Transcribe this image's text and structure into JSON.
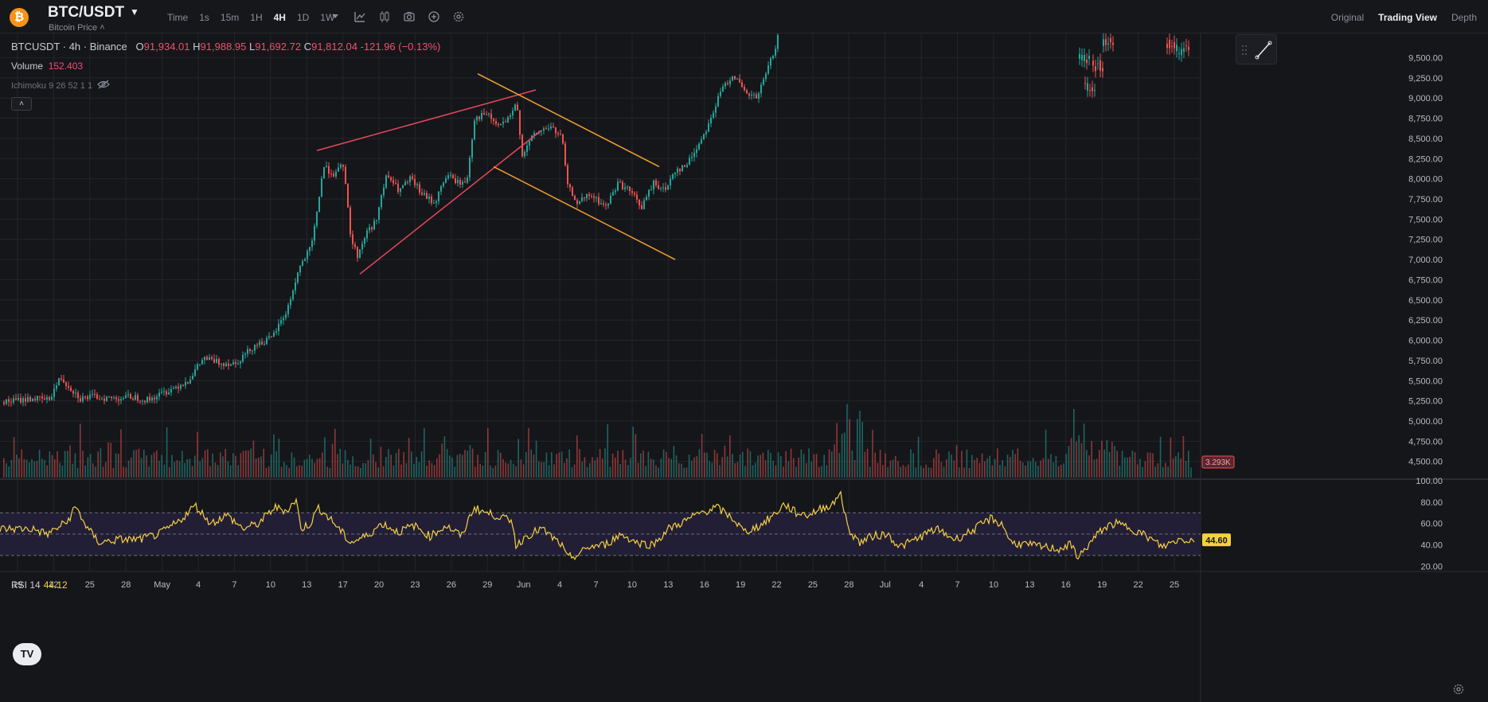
{
  "header": {
    "coin_icon": "bitcoin-icon",
    "pair": "BTC/USDT",
    "subtitle": "Bitcoin Price",
    "timeframe_label": "Time",
    "timeframes": [
      "1s",
      "15m",
      "1H",
      "4H",
      "1D",
      "1W"
    ],
    "active_timeframe": "4H",
    "tools": [
      "chevron-down-icon",
      "indicator-icon",
      "candles-icon",
      "camera-icon",
      "plus-circle-icon",
      "settings-icon"
    ],
    "views": [
      "Original",
      "Trading View",
      "Depth"
    ],
    "active_view": "Trading View"
  },
  "legend": {
    "symbol": "BTCUSDT · 4h · Binance",
    "open_label": "O",
    "open": "91,934.01",
    "high_label": "H",
    "high": "91,988.95",
    "low_label": "L",
    "low": "91,692.72",
    "close_label": "C",
    "close": "91,812.04",
    "change": "-121.96 (−0.13%)",
    "volume_label": "Volume",
    "volume_value": "152.403",
    "ichimoku_label": "Ichimoku 9 26 52 1 1",
    "rsi_label": "RSI 14",
    "rsi_value": "44.12"
  },
  "colors": {
    "background": "#15161a",
    "grid": "#23252b",
    "up": "#26a69a",
    "down": "#ef5350",
    "rsi": "#f5d142",
    "trend_red": "#e8485c",
    "trend_orange": "#f0a030"
  },
  "chart_data": [
    {
      "type": "candlestick",
      "price_ticks": [
        "9,500.00",
        "9,250.00",
        "9,000.00",
        "8,750.00",
        "8,500.00",
        "8,250.00",
        "8,000.00",
        "7,750.00",
        "7,500.00",
        "7,250.00",
        "7,000.00",
        "6,750.00",
        "6,500.00",
        "6,250.00",
        "6,000.00",
        "5,750.00",
        "5,500.00",
        "5,250.00",
        "5,000.00",
        "4,750.00",
        "4,500.00"
      ],
      "x_ticks": [
        "19",
        "22",
        "25",
        "28",
        "May",
        "4",
        "7",
        "10",
        "13",
        "17",
        "20",
        "23",
        "26",
        "29",
        "Jun",
        "4",
        "7",
        "10",
        "13",
        "16",
        "19",
        "22",
        "25",
        "28",
        "Jul",
        "4",
        "7",
        "10",
        "13",
        "16",
        "19",
        "22",
        "25"
      ],
      "ylim": [
        4300,
        9800
      ],
      "volume_badge": "3.293K",
      "path_keypoints": [
        [
          0,
          5230
        ],
        [
          40,
          5280
        ],
        [
          60,
          5260
        ],
        [
          75,
          5540
        ],
        [
          100,
          5280
        ],
        [
          115,
          5300
        ],
        [
          140,
          5280
        ],
        [
          165,
          5300
        ],
        [
          185,
          5260
        ],
        [
          215,
          5400
        ],
        [
          235,
          5500
        ],
        [
          255,
          5780
        ],
        [
          275,
          5720
        ],
        [
          295,
          5720
        ],
        [
          320,
          5950
        ],
        [
          340,
          6020
        ],
        [
          360,
          6380
        ],
        [
          375,
          6900
        ],
        [
          390,
          7150
        ],
        [
          395,
          7450
        ],
        [
          405,
          8150
        ],
        [
          420,
          8050
        ],
        [
          430,
          8180
        ],
        [
          440,
          7250
        ],
        [
          448,
          7050
        ],
        [
          460,
          7350
        ],
        [
          470,
          7450
        ],
        [
          485,
          8050
        ],
        [
          500,
          7850
        ],
        [
          515,
          8000
        ],
        [
          530,
          7800
        ],
        [
          545,
          7700
        ],
        [
          560,
          8050
        ],
        [
          575,
          7950
        ],
        [
          585,
          7950
        ],
        [
          595,
          8750
        ],
        [
          610,
          8800
        ],
        [
          625,
          8650
        ],
        [
          640,
          8750
        ],
        [
          648,
          8950
        ],
        [
          655,
          8300
        ],
        [
          670,
          8550
        ],
        [
          690,
          8650
        ],
        [
          705,
          8500
        ],
        [
          712,
          7900
        ],
        [
          725,
          7700
        ],
        [
          740,
          7800
        ],
        [
          760,
          7650
        ],
        [
          775,
          7950
        ],
        [
          790,
          7850
        ],
        [
          805,
          7650
        ],
        [
          820,
          7950
        ],
        [
          835,
          7850
        ],
        [
          845,
          8100
        ],
        [
          860,
          8150
        ],
        [
          875,
          8400
        ],
        [
          890,
          8700
        ],
        [
          905,
          9100
        ],
        [
          920,
          9300
        ],
        [
          935,
          9050
        ],
        [
          950,
          9000
        ],
        [
          965,
          9400
        ],
        [
          978,
          9800
        ]
      ],
      "partial_tail": [
        [
          1355,
          9500
        ],
        [
          1362,
          9150
        ],
        [
          1372,
          9400
        ],
        [
          1385,
          9700
        ],
        [
          1465,
          9650
        ],
        [
          1480,
          9600
        ]
      ],
      "trendlines": [
        {
          "color": "red",
          "from": [
            398,
            8350
          ],
          "to": [
            673,
            9100
          ]
        },
        {
          "color": "red",
          "from": [
            452,
            6820
          ],
          "to": [
            680,
            8600
          ]
        },
        {
          "color": "orange",
          "from": [
            600,
            9300
          ],
          "to": [
            828,
            8150
          ]
        },
        {
          "color": "orange",
          "from": [
            620,
            8150
          ],
          "to": [
            848,
            7000
          ]
        }
      ]
    },
    {
      "type": "line",
      "name": "RSI 14",
      "ylim": [
        15,
        100
      ],
      "y_ticks": [
        "100.00",
        "80.00",
        "60.00",
        "40.00",
        "20.00"
      ],
      "levels": [
        70,
        50,
        30
      ],
      "current_badge": "44.60",
      "keypoints": [
        [
          0,
          55
        ],
        [
          40,
          55
        ],
        [
          60,
          50
        ],
        [
          85,
          62
        ],
        [
          95,
          76
        ],
        [
          110,
          55
        ],
        [
          125,
          42
        ],
        [
          150,
          45
        ],
        [
          175,
          45
        ],
        [
          200,
          50
        ],
        [
          225,
          62
        ],
        [
          245,
          77
        ],
        [
          265,
          60
        ],
        [
          285,
          68
        ],
        [
          305,
          55
        ],
        [
          325,
          60
        ],
        [
          345,
          75
        ],
        [
          360,
          72
        ],
        [
          372,
          82
        ],
        [
          378,
          55
        ],
        [
          390,
          60
        ],
        [
          400,
          75
        ],
        [
          420,
          60
        ],
        [
          440,
          42
        ],
        [
          460,
          48
        ],
        [
          480,
          60
        ],
        [
          500,
          52
        ],
        [
          520,
          58
        ],
        [
          540,
          48
        ],
        [
          560,
          58
        ],
        [
          580,
          48
        ],
        [
          595,
          75
        ],
        [
          610,
          70
        ],
        [
          630,
          66
        ],
        [
          645,
          60
        ],
        [
          648,
          38
        ],
        [
          660,
          48
        ],
        [
          680,
          55
        ],
        [
          705,
          40
        ],
        [
          712,
          28
        ],
        [
          725,
          30
        ],
        [
          740,
          38
        ],
        [
          760,
          40
        ],
        [
          780,
          50
        ],
        [
          800,
          42
        ],
        [
          820,
          40
        ],
        [
          840,
          55
        ],
        [
          860,
          62
        ],
        [
          880,
          70
        ],
        [
          900,
          75
        ],
        [
          920,
          65
        ],
        [
          935,
          52
        ],
        [
          955,
          58
        ],
        [
          975,
          70
        ],
        [
          985,
          78
        ],
        [
          1000,
          70
        ],
        [
          1015,
          68
        ],
        [
          1035,
          75
        ],
        [
          1050,
          80
        ],
        [
          1055,
          92
        ],
        [
          1065,
          55
        ],
        [
          1080,
          42
        ],
        [
          1095,
          48
        ],
        [
          1115,
          50
        ],
        [
          1130,
          38
        ],
        [
          1150,
          45
        ],
        [
          1175,
          55
        ],
        [
          1200,
          45
        ],
        [
          1225,
          55
        ],
        [
          1245,
          65
        ],
        [
          1260,
          58
        ],
        [
          1270,
          42
        ],
        [
          1290,
          40
        ],
        [
          1310,
          38
        ],
        [
          1330,
          36
        ],
        [
          1345,
          40
        ],
        [
          1355,
          28
        ],
        [
          1365,
          38
        ],
        [
          1385,
          55
        ],
        [
          1400,
          60
        ],
        [
          1420,
          56
        ],
        [
          1440,
          48
        ],
        [
          1460,
          38
        ],
        [
          1480,
          45
        ],
        [
          1500,
          44.6
        ]
      ]
    }
  ]
}
